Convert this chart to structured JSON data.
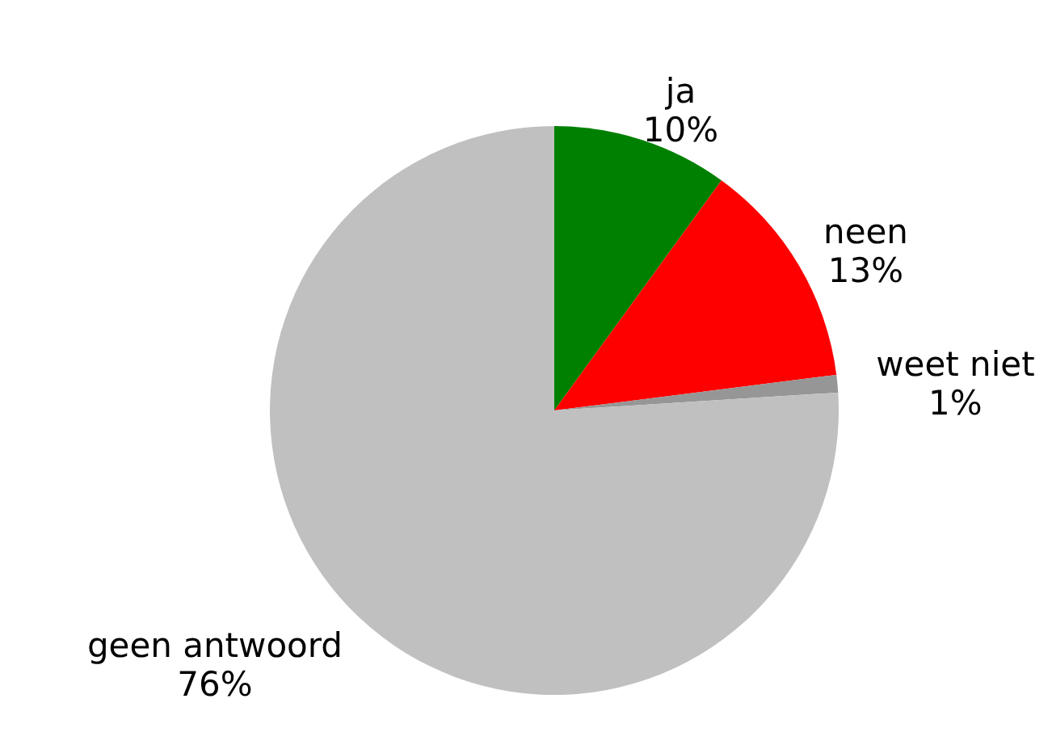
{
  "chart_data": {
    "type": "pie",
    "categories": [
      "ja",
      "neen",
      "weet niet",
      "geen antwoord"
    ],
    "values": [
      10,
      13,
      1,
      76
    ],
    "colors": [
      "#008000",
      "#ff0000",
      "#969696",
      "#c0c0c0"
    ],
    "value_labels": [
      "10%",
      "13%",
      "1%",
      "76%"
    ]
  }
}
